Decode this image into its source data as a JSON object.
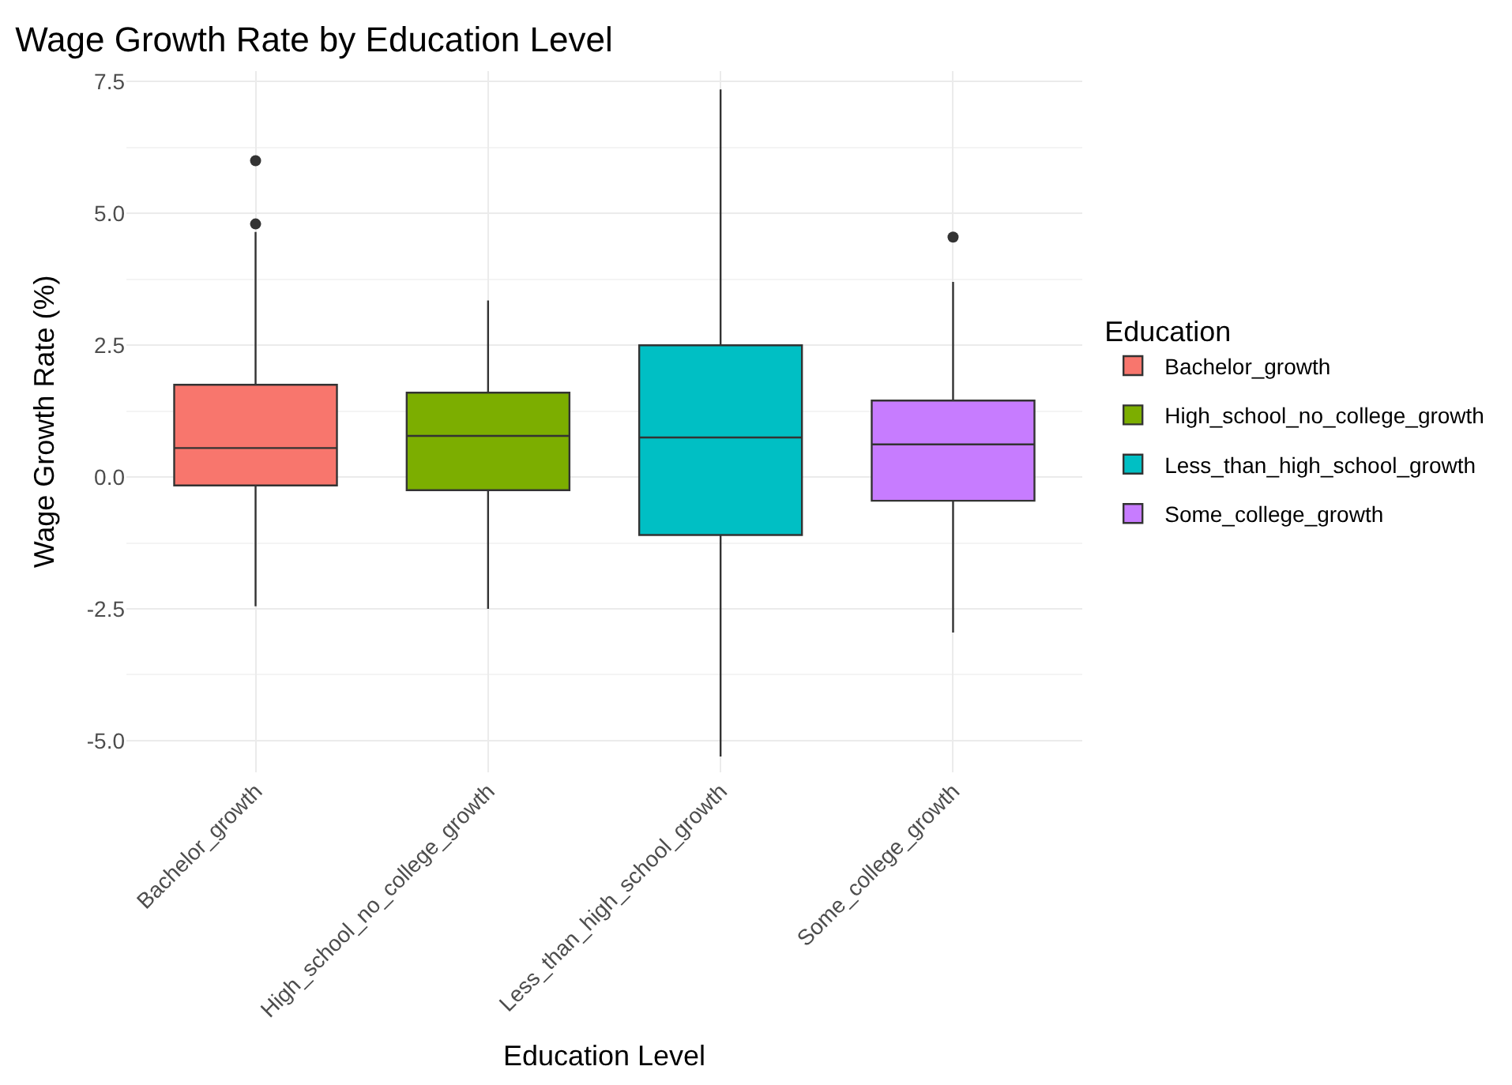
{
  "chart_data": {
    "type": "box",
    "title": "Wage Growth Rate by Education Level",
    "xlabel": "Education Level",
    "ylabel": "Wage Growth Rate (%)",
    "legend_title": "Education",
    "categories": [
      "Bachelor_growth",
      "High_school_no_college_growth",
      "Less_than_high_school_growth",
      "Some_college_growth"
    ],
    "series": [
      {
        "name": "Bachelor_growth",
        "color": "#f8766d",
        "boxes": [
          {
            "low": -2.45,
            "q1": -0.16,
            "median": 0.55,
            "q3": 1.75,
            "high": 4.65,
            "outliers": [
              4.8,
              6.0
            ]
          },
          null,
          null,
          null
        ]
      },
      {
        "name": "High_school_no_college_growth",
        "color": "#7cae00",
        "boxes": [
          null,
          {
            "low": -2.5,
            "q1": -0.25,
            "median": 0.78,
            "q3": 1.6,
            "high": 3.35
          },
          null,
          null
        ]
      },
      {
        "name": "Less_than_high_school_growth",
        "color": "#00bfc4",
        "boxes": [
          null,
          null,
          {
            "low": -5.3,
            "q1": -1.1,
            "median": 0.75,
            "q3": 2.5,
            "high": 7.35
          },
          null
        ]
      },
      {
        "name": "Some_college_growth",
        "color": "#c77cff",
        "boxes": [
          null,
          null,
          null,
          {
            "low": -2.95,
            "q1": -0.45,
            "median": 0.62,
            "q3": 1.45,
            "high": 3.7,
            "outliers": [
              4.55
            ]
          }
        ]
      }
    ],
    "ylim": [
      -5.6,
      7.7
    ],
    "yticks": [
      {
        "value": -5,
        "label": "-5.0"
      },
      {
        "value": -2.5,
        "label": "-2.5"
      },
      {
        "value": 0,
        "label": "0.0"
      },
      {
        "value": 2.5,
        "label": "2.5"
      },
      {
        "value": 5,
        "label": "5.0"
      },
      {
        "value": 7.5,
        "label": "7.5"
      }
    ],
    "grid": true,
    "legend": "right"
  }
}
